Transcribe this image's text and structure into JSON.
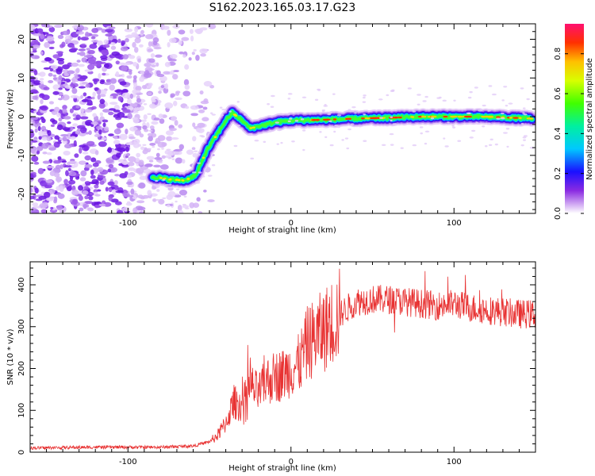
{
  "title": "S162.2023.165.03.17.G23",
  "chart_data": [
    {
      "type": "heatmap",
      "title": "S162.2023.165.03.17.G23",
      "xlabel": "Height of straight line (km)",
      "ylabel": "Frequency (Hz)",
      "xlim": [
        -160,
        150
      ],
      "ylim": [
        -25,
        24
      ],
      "xticks": [
        -100,
        0,
        100
      ],
      "yticks": [
        -20,
        -10,
        0,
        10,
        20
      ],
      "colorbar": {
        "label": "Normalized spectral amplitude",
        "range": [
          0,
          0.95
        ],
        "ticks": [
          0.0,
          0.2,
          0.4,
          0.6,
          0.8
        ]
      },
      "ridge": {
        "description_points_x": [
          -85,
          -75,
          -65,
          -58,
          -52,
          -46,
          -40,
          -36,
          -30,
          -25,
          -20,
          -10,
          0,
          20,
          40,
          60,
          80,
          100,
          120,
          148
        ],
        "description_points_y": [
          -15.5,
          -16.2,
          -16.5,
          -15,
          -9,
          -5,
          -1,
          1,
          -1,
          -3,
          -2.5,
          -1.5,
          -1,
          -0.8,
          -0.5,
          -0.3,
          0,
          0,
          0,
          -0.5
        ]
      }
    },
    {
      "type": "line",
      "xlabel": "Height of straight line (km)",
      "ylabel": "SNR (10 * v/v)",
      "xlim": [
        -160,
        150
      ],
      "ylim": [
        0,
        455
      ],
      "xticks": [
        -100,
        0,
        100
      ],
      "yticks": [
        0,
        100,
        200,
        300,
        400
      ],
      "series": [
        {
          "color": "#e83232",
          "x": [
            -160,
            -120,
            -80,
            -60,
            -50,
            -45,
            -40,
            -35,
            -30,
            -25,
            -20,
            -15,
            -10,
            -5,
            0,
            5,
            10,
            15,
            20,
            25,
            30,
            40,
            50,
            60,
            70,
            80,
            90,
            100,
            110,
            120,
            130,
            140,
            150
          ],
          "y": [
            10,
            12,
            12,
            15,
            25,
            40,
            70,
            120,
            110,
            160,
            140,
            170,
            180,
            185,
            200,
            210,
            260,
            275,
            290,
            310,
            330,
            360,
            365,
            365,
            360,
            355,
            350,
            355,
            345,
            340,
            335,
            330,
            330
          ]
        }
      ]
    }
  ]
}
